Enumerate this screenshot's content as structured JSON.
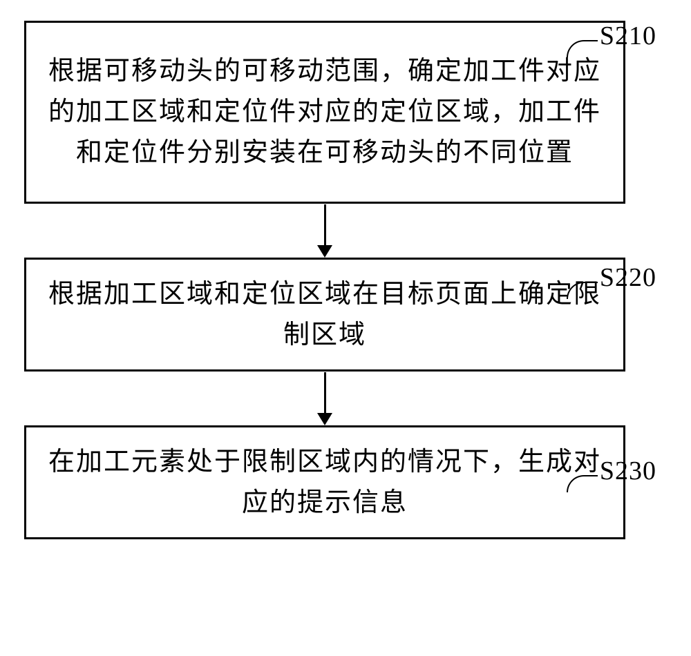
{
  "flowchart": {
    "type": "flowchart",
    "background_color": "#ffffff",
    "box_border_color": "#000000",
    "box_border_width": 3,
    "text_color": "#000000",
    "font_size": 38,
    "font_family": "SimSun",
    "arrow_color": "#000000",
    "arrow_line_width": 3,
    "steps": [
      {
        "id": "S210",
        "label": "S210",
        "text": "根据可移动头的可移动范围，确定加工件对应的加工区域和定位件对应的定位区域，加工件和定位件分别安装在可移动头的不同位置"
      },
      {
        "id": "S220",
        "label": "S220",
        "text": "根据加工区域和定位区域在目标页面上确定限制区域"
      },
      {
        "id": "S230",
        "label": "S230",
        "text": "在加工元素处于限制区域内的情况下，生成对应的提示信息"
      }
    ],
    "edges": [
      {
        "from": "S210",
        "to": "S220"
      },
      {
        "from": "S220",
        "to": "S230"
      }
    ]
  }
}
